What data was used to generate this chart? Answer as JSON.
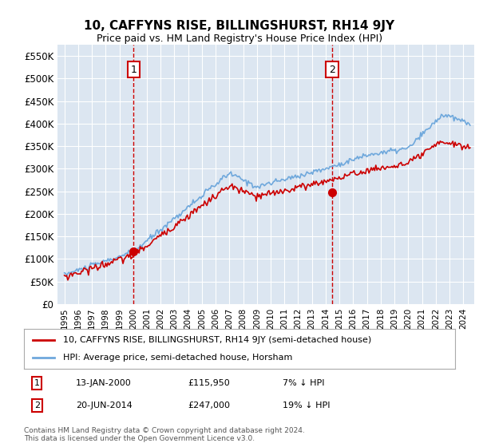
{
  "title": "10, CAFFYNS RISE, BILLINGSHURST, RH14 9JY",
  "subtitle": "Price paid vs. HM Land Registry's House Price Index (HPI)",
  "ylabel": "",
  "background_color": "#ffffff",
  "plot_bg_color": "#dce6f1",
  "grid_color": "#ffffff",
  "ylim": [
    0,
    575000
  ],
  "yticks": [
    0,
    50000,
    100000,
    150000,
    200000,
    250000,
    300000,
    350000,
    400000,
    450000,
    500000,
    550000
  ],
  "ytick_labels": [
    "£0",
    "£50K",
    "£100K",
    "£150K",
    "£200K",
    "£250K",
    "£300K",
    "£350K",
    "£400K",
    "£450K",
    "£500K",
    "£550K"
  ],
  "sale1_date": 2000.04,
  "sale1_price": 115950,
  "sale1_label": "1",
  "sale2_date": 2014.47,
  "sale2_price": 247000,
  "sale2_label": "2",
  "hpi_color": "#6fa8dc",
  "price_color": "#cc0000",
  "sale_marker_color": "#cc0000",
  "vline_color": "#cc0000",
  "legend_entries": [
    "10, CAFFYNS RISE, BILLINGSHURST, RH14 9JY (semi-detached house)",
    "HPI: Average price, semi-detached house, Horsham"
  ],
  "annotation_rows": [
    [
      "1",
      "13-JAN-2000",
      "£115,950",
      "7% ↓ HPI"
    ],
    [
      "2",
      "20-JUN-2014",
      "£247,000",
      "19% ↓ HPI"
    ]
  ],
  "footer": "Contains HM Land Registry data © Crown copyright and database right 2024.\nThis data is licensed under the Open Government Licence v3.0."
}
